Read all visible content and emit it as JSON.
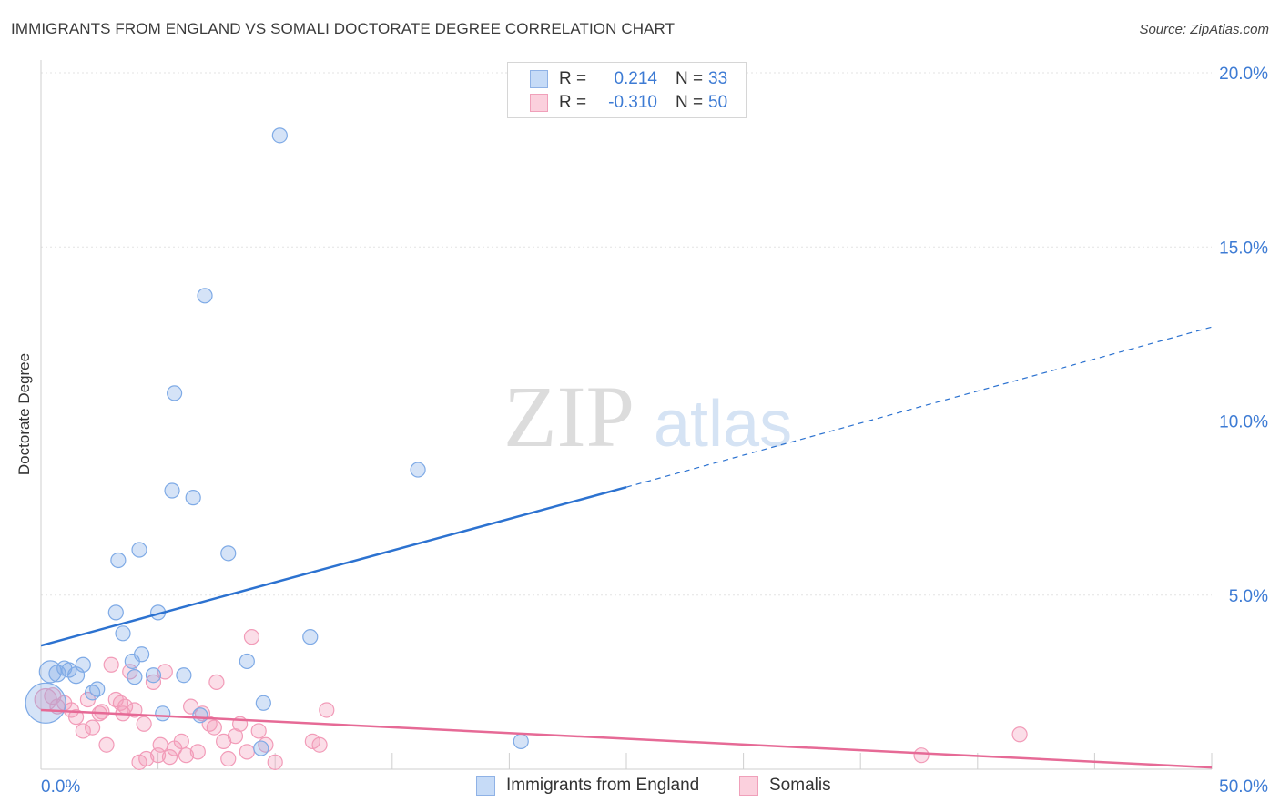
{
  "chart_data": {
    "type": "scatter",
    "title": "IMMIGRANTS FROM ENGLAND VS SOMALI DOCTORATE DEGREE CORRELATION CHART",
    "source": "Source: ZipAtlas.com",
    "xlabel": "",
    "ylabel": "Doctorate Degree",
    "xlim": [
      0,
      50
    ],
    "ylim": [
      0,
      20
    ],
    "x_tick_labels": [
      "0.0%",
      "50.0%"
    ],
    "y_ticks": [
      {
        "value": 5,
        "label": "5.0%"
      },
      {
        "value": 10,
        "label": "10.0%"
      },
      {
        "value": 15,
        "label": "15.0%"
      },
      {
        "value": 20,
        "label": "20.0%"
      }
    ],
    "watermark": {
      "zip": "ZIP",
      "atlas": "atlas"
    },
    "legend": [
      {
        "name": "Immigrants from England",
        "r_label": "R =",
        "r": "0.214",
        "n_label": "N =",
        "n": "33",
        "color": "#7eaae6"
      },
      {
        "name": "Somalis",
        "r_label": "R =",
        "r": "-0.310",
        "n_label": "N =",
        "n": "50",
        "color": "#f29bb8"
      }
    ],
    "series": [
      {
        "name": "Immigrants from England",
        "color": "#7eaae6",
        "trend": {
          "x0": 0,
          "y0": 3.55,
          "x1": 25,
          "y1": 8.1,
          "dash_to_x": 50,
          "dash_to_y": 12.7,
          "color": "#2c72d0"
        },
        "points": [
          [
            0.2,
            1.9,
            22
          ],
          [
            0.4,
            2.8,
            12
          ],
          [
            0.7,
            2.75,
            9
          ],
          [
            1.0,
            2.9,
            8
          ],
          [
            1.2,
            2.85,
            8
          ],
          [
            1.5,
            2.7,
            9
          ],
          [
            1.8,
            3.0,
            8
          ],
          [
            2.2,
            2.2,
            8
          ],
          [
            2.4,
            2.3,
            8
          ],
          [
            3.2,
            4.5,
            8
          ],
          [
            3.3,
            6.0,
            8
          ],
          [
            3.5,
            3.9,
            8
          ],
          [
            3.9,
            3.1,
            8
          ],
          [
            4.0,
            2.65,
            8
          ],
          [
            4.2,
            6.3,
            8
          ],
          [
            4.3,
            3.3,
            8
          ],
          [
            4.8,
            2.7,
            8
          ],
          [
            5.0,
            4.5,
            8
          ],
          [
            5.2,
            1.6,
            8
          ],
          [
            5.7,
            10.8,
            8
          ],
          [
            5.6,
            8.0,
            8
          ],
          [
            6.1,
            2.7,
            8
          ],
          [
            6.5,
            7.8,
            8
          ],
          [
            6.8,
            1.55,
            8
          ],
          [
            7.0,
            13.6,
            8
          ],
          [
            8.0,
            6.2,
            8
          ],
          [
            8.8,
            3.1,
            8
          ],
          [
            9.4,
            0.6,
            8
          ],
          [
            9.5,
            1.9,
            8
          ],
          [
            10.2,
            18.2,
            8
          ],
          [
            11.5,
            3.8,
            8
          ],
          [
            16.1,
            8.6,
            8
          ],
          [
            20.5,
            0.8,
            8
          ]
        ]
      },
      {
        "name": "Somalis",
        "color": "#f29bb8",
        "trend": {
          "x0": 0,
          "y0": 1.7,
          "x1": 50,
          "y1": 0.05,
          "color": "#e66a96"
        },
        "points": [
          [
            0.2,
            2.0,
            12
          ],
          [
            0.5,
            2.1,
            9
          ],
          [
            0.7,
            1.8,
            8
          ],
          [
            1.0,
            1.9,
            8
          ],
          [
            1.3,
            1.7,
            8
          ],
          [
            1.5,
            1.5,
            8
          ],
          [
            1.8,
            1.1,
            8
          ],
          [
            2.0,
            2.0,
            8
          ],
          [
            2.2,
            1.2,
            8
          ],
          [
            2.5,
            1.6,
            8
          ],
          [
            2.6,
            1.65,
            8
          ],
          [
            2.8,
            0.7,
            8
          ],
          [
            3.0,
            3.0,
            8
          ],
          [
            3.2,
            2.0,
            8
          ],
          [
            3.4,
            1.9,
            8
          ],
          [
            3.5,
            1.6,
            8
          ],
          [
            3.6,
            1.8,
            8
          ],
          [
            3.8,
            2.8,
            8
          ],
          [
            4.0,
            1.7,
            8
          ],
          [
            4.2,
            0.2,
            8
          ],
          [
            4.4,
            1.3,
            8
          ],
          [
            4.5,
            0.3,
            8
          ],
          [
            4.8,
            2.5,
            8
          ],
          [
            5.0,
            0.4,
            8
          ],
          [
            5.1,
            0.7,
            8
          ],
          [
            5.3,
            2.8,
            8
          ],
          [
            5.5,
            0.35,
            8
          ],
          [
            5.7,
            0.6,
            8
          ],
          [
            6.0,
            0.8,
            8
          ],
          [
            6.2,
            0.4,
            8
          ],
          [
            6.4,
            1.8,
            8
          ],
          [
            6.7,
            0.5,
            8
          ],
          [
            6.9,
            1.6,
            8
          ],
          [
            7.2,
            1.3,
            8
          ],
          [
            7.4,
            1.2,
            8
          ],
          [
            7.5,
            2.5,
            8
          ],
          [
            7.8,
            0.8,
            8
          ],
          [
            8.0,
            0.3,
            8
          ],
          [
            8.3,
            0.95,
            8
          ],
          [
            8.5,
            1.3,
            8
          ],
          [
            8.8,
            0.5,
            8
          ],
          [
            9.0,
            3.8,
            8
          ],
          [
            9.3,
            1.1,
            8
          ],
          [
            9.6,
            0.7,
            8
          ],
          [
            10.0,
            0.2,
            8
          ],
          [
            11.6,
            0.8,
            8
          ],
          [
            11.9,
            0.7,
            8
          ],
          [
            12.2,
            1.7,
            8
          ],
          [
            37.6,
            0.4,
            8
          ],
          [
            41.8,
            1.0,
            8
          ]
        ]
      }
    ]
  }
}
